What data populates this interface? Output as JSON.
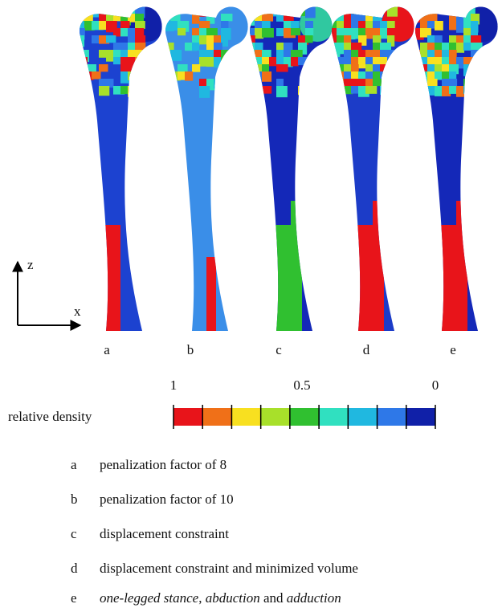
{
  "axes": {
    "z": "z",
    "x": "x"
  },
  "panels": [
    "a",
    "b",
    "c",
    "d",
    "e"
  ],
  "colorbar": {
    "label": "relative density",
    "ticks": [
      "1",
      "0.5",
      "0"
    ]
  },
  "legend": [
    {
      "key": "a",
      "text": "penalization factor of 8"
    },
    {
      "key": "b",
      "text": "penalization factor of 10"
    },
    {
      "key": "c",
      "text": "displacement constraint"
    },
    {
      "key": "d",
      "text": "displacement constraint and minimized volume"
    },
    {
      "key": "e",
      "parts": [
        "one-legged stance",
        ", ",
        "abduction",
        " and ",
        "adduction"
      ]
    }
  ]
}
